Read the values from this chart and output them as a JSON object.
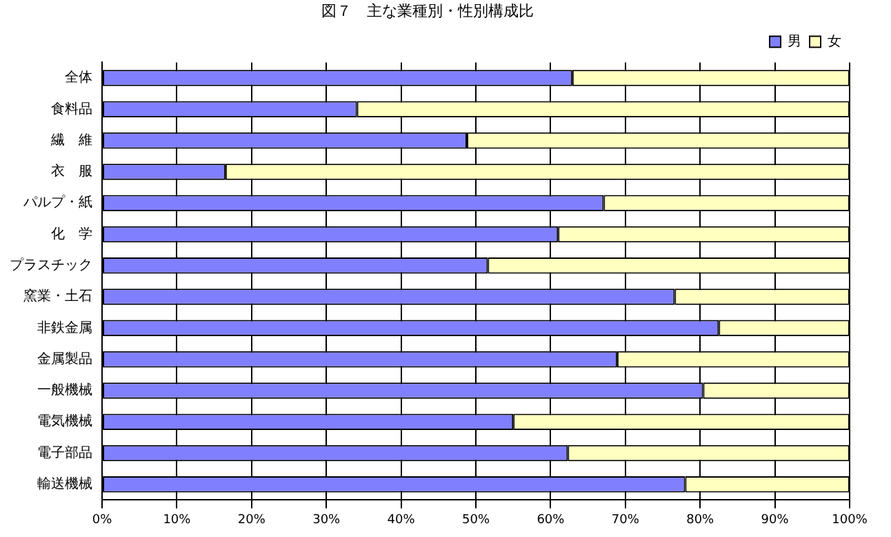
{
  "chart_data": {
    "type": "bar",
    "orientation": "horizontal",
    "stacked": true,
    "title": "図７　主な業種別・性別構成比",
    "categories": [
      "全体",
      "食料品",
      "繊　維",
      "衣　服",
      "パルプ・紙",
      "化　学",
      "プラスチック",
      "窯業・土石",
      "非鉄金属",
      "金属製品",
      "一般機械",
      "電気機械",
      "電子部品",
      "輸送機械"
    ],
    "series": [
      {
        "name": "男",
        "color": "#8080ff",
        "values": [
          62.9,
          34.1,
          48.8,
          16.5,
          67.1,
          61.0,
          51.6,
          76.6,
          82.5,
          68.9,
          80.4,
          55.0,
          62.3,
          78.0
        ]
      },
      {
        "name": "女",
        "color": "#ffffc0",
        "values": [
          37.1,
          65.9,
          51.2,
          83.5,
          32.9,
          39.0,
          48.4,
          23.4,
          17.5,
          31.1,
          19.6,
          45.0,
          37.7,
          22.0
        ]
      }
    ],
    "xlim": [
      0,
      100
    ],
    "xticks": [
      {
        "value": 0,
        "label": "0%"
      },
      {
        "value": 10,
        "label": "10%"
      },
      {
        "value": 20,
        "label": "20%"
      },
      {
        "value": 30,
        "label": "30%"
      },
      {
        "value": 40,
        "label": "40%"
      },
      {
        "value": 50,
        "label": "50%"
      },
      {
        "value": 60,
        "label": "60%"
      },
      {
        "value": 70,
        "label": "70%"
      },
      {
        "value": 80,
        "label": "80%"
      },
      {
        "value": 90,
        "label": "90%"
      },
      {
        "value": 100,
        "label": "100%"
      }
    ],
    "grid": "x",
    "legend": "top right"
  }
}
